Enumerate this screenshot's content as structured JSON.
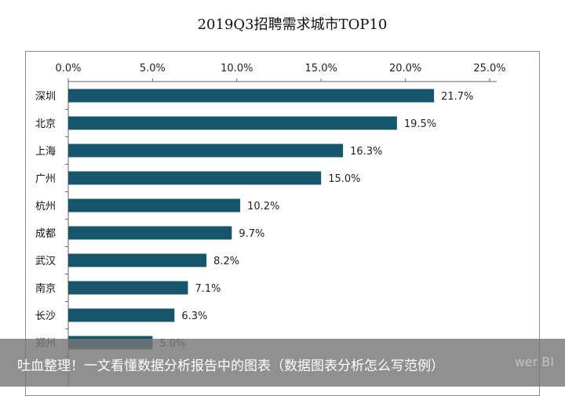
{
  "chart_data": {
    "type": "bar",
    "orientation": "horizontal",
    "title": "2019Q3招聘需求城市TOP10",
    "categories": [
      "深圳",
      "北京",
      "上海",
      "广州",
      "杭州",
      "成都",
      "武汉",
      "南京",
      "长沙",
      "郑州"
    ],
    "values": [
      21.7,
      19.5,
      16.3,
      15.0,
      10.2,
      9.7,
      8.2,
      7.1,
      6.3,
      5.0
    ],
    "data_labels": [
      "21.7%",
      "19.5%",
      "16.3%",
      "15.0%",
      "10.2%",
      "9.7%",
      "8.2%",
      "7.1%",
      "6.3%",
      "5.0%"
    ],
    "xticks": [
      "0.0%",
      "5.0%",
      "10.0%",
      "15.0%",
      "20.0%",
      "25.0%"
    ],
    "xlim": [
      0,
      25
    ],
    "x_axis_position": "top",
    "grid": false,
    "bar_color": "#17566a"
  },
  "caption": {
    "text": "吐血整理！一文看懂数据分析报告中的图表（数据图表分析怎么写范例）",
    "watermark": "wer BI"
  }
}
